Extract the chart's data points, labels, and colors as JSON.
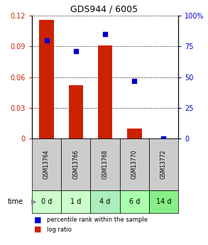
{
  "title": "GDS944 / 6005",
  "samples": [
    "GSM13764",
    "GSM13766",
    "GSM13768",
    "GSM13770",
    "GSM13772"
  ],
  "time_labels": [
    "0 d",
    "1 d",
    "4 d",
    "6 d",
    "14 d"
  ],
  "log_ratio": [
    0.116,
    0.052,
    0.091,
    0.01,
    0.0
  ],
  "percentile_rank": [
    80.0,
    71.0,
    85.0,
    47.0,
    0.0
  ],
  "bar_color": "#cc2200",
  "dot_color": "#0000cc",
  "ylim_left": [
    0,
    0.12
  ],
  "ylim_right": [
    0,
    100
  ],
  "yticks_left": [
    0,
    0.03,
    0.06,
    0.09,
    0.12
  ],
  "yticks_right": [
    0,
    25,
    50,
    75,
    100
  ],
  "ytick_labels_left": [
    "0",
    "0.03",
    "0.06",
    "0.09",
    "0.12"
  ],
  "ytick_labels_right": [
    "0",
    "25",
    "50",
    "75",
    "100%"
  ],
  "bg_color": "#ffffff",
  "plot_bg": "#ffffff",
  "bar_width": 0.5,
  "legend_log": "log ratio",
  "legend_pct": "percentile rank within the sample",
  "time_colors": [
    "#ccffcc",
    "#ccffcc",
    "#aaeebb",
    "#aaffaa",
    "#88ee88"
  ],
  "gsm_row_color": "#cccccc",
  "title_color": "#000000",
  "left_tick_color": "#cc2200",
  "right_tick_color": "#0000cc",
  "title_fontsize": 9,
  "tick_fontsize": 7,
  "legend_fontsize": 6,
  "gsm_fontsize": 5.5,
  "time_fontsize": 7
}
